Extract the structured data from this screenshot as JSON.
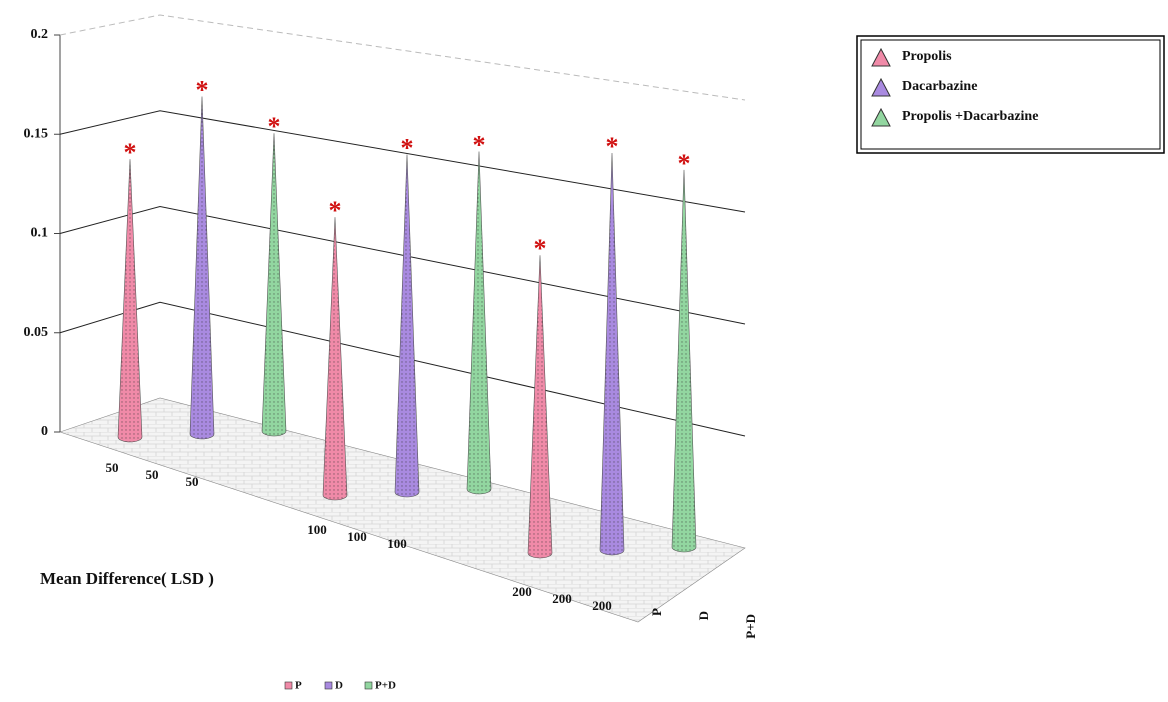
{
  "chart_data": {
    "type": "cone3d",
    "x_axis_label": "Mean Difference( LSD )",
    "categories": [
      "50",
      "100",
      "200"
    ],
    "series": [
      {
        "name": "P",
        "label": "Propolis",
        "color": "#f08aa8",
        "values": [
          0.14,
          0.14,
          0.15
        ]
      },
      {
        "name": "D",
        "label": "Dacarbazine",
        "color": "#a98ae0",
        "values": [
          0.17,
          0.17,
          0.2
        ]
      },
      {
        "name": "P+D",
        "label": "Propolis +Dacarbazine",
        "color": "#92d6a0",
        "values": [
          0.15,
          0.17,
          0.19
        ]
      }
    ],
    "significance_marker": "*",
    "ylim": [
      0,
      0.2
    ],
    "yticks": [
      0,
      0.05,
      0.1,
      0.15,
      0.2
    ],
    "grid": true
  }
}
